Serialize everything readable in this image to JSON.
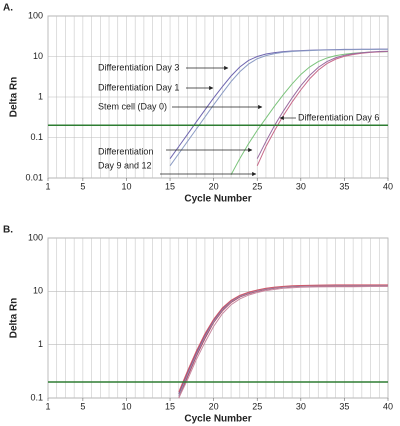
{
  "chart_data": [
    {
      "type": "line",
      "panel_label": "A.",
      "xlabel": "Cycle Number",
      "ylabel": "Delta Rn",
      "log_y": true,
      "xlim": [
        1,
        40
      ],
      "xticks": [
        1,
        5,
        10,
        15,
        20,
        25,
        30,
        35,
        40
      ],
      "xgrid": [
        1,
        2,
        3,
        4,
        5,
        6,
        7,
        8,
        9,
        10,
        11,
        12,
        13,
        14,
        15,
        16,
        17,
        18,
        19,
        20,
        21,
        22,
        23,
        24,
        25,
        26,
        27,
        28,
        29,
        30,
        31,
        32,
        33,
        34,
        35,
        36,
        37,
        38,
        39,
        40
      ],
      "ylim": [
        0.01,
        100
      ],
      "yticks": [
        0.01,
        0.1,
        1,
        10,
        100
      ],
      "threshold": 0.2,
      "threshold_color": "#2e7d32",
      "annotations": [
        "Differentiation Day 3",
        "Differentiation Day 1",
        "Stem cell (Day 0)",
        "Differentiation Day 6",
        "Differentiation",
        "Day 9 and 12"
      ],
      "series": [
        {
          "color": "#6f66b0",
          "x": [
            15,
            16,
            17,
            18,
            19,
            20,
            21,
            22,
            23,
            24,
            25,
            26,
            27,
            28,
            29,
            30,
            31,
            32,
            33,
            34,
            35,
            36,
            37,
            38,
            39,
            40
          ],
          "values": [
            0.03,
            0.06,
            0.12,
            0.24,
            0.48,
            0.95,
            1.8,
            3.3,
            5.5,
            8,
            10,
            11.5,
            12.5,
            13.2,
            13.7,
            14,
            14.3,
            14.5,
            14.7,
            14.8,
            15,
            15,
            15.1,
            15.1,
            15.2,
            15.2
          ]
        },
        {
          "color": "#8c9cc4",
          "x": [
            15,
            16,
            17,
            18,
            19,
            20,
            21,
            22,
            23,
            24,
            25,
            26,
            27,
            28,
            29,
            30,
            31,
            32,
            33,
            34,
            35,
            36,
            37,
            38,
            39,
            40
          ],
          "values": [
            0.02,
            0.04,
            0.08,
            0.16,
            0.32,
            0.64,
            1.25,
            2.4,
            4.2,
            6.5,
            8.8,
            10.5,
            11.8,
            12.7,
            13.3,
            13.7,
            14,
            14.3,
            14.5,
            14.6,
            14.7,
            14.8,
            14.9,
            14.9,
            15,
            15
          ]
        },
        {
          "color": "#7cc47c",
          "x": [
            22,
            23,
            24,
            25,
            26,
            27,
            28,
            29,
            30,
            31,
            32,
            33,
            34,
            35,
            36,
            37,
            38,
            39,
            40
          ],
          "values": [
            0.012,
            0.03,
            0.07,
            0.15,
            0.3,
            0.6,
            1.15,
            2.1,
            3.6,
            5.5,
            7.5,
            9.2,
            10.5,
            11.4,
            12,
            12.5,
            12.8,
            13,
            13.2
          ]
        },
        {
          "color": "#c86a8a",
          "x": [
            25,
            26,
            27,
            28,
            29,
            30,
            31,
            32,
            33,
            34,
            35,
            36,
            37,
            38,
            39,
            40
          ],
          "values": [
            0.02,
            0.06,
            0.15,
            0.35,
            0.75,
            1.5,
            2.8,
            4.6,
            6.7,
            8.6,
            10.1,
            11.2,
            12,
            12.6,
            13,
            13.3
          ]
        },
        {
          "color": "#9a6aa0",
          "x": [
            25,
            26,
            27,
            28,
            29,
            30,
            31,
            32,
            33,
            34,
            35,
            36,
            37,
            38,
            39,
            40
          ],
          "values": [
            0.03,
            0.08,
            0.2,
            0.45,
            0.95,
            1.9,
            3.4,
            5.4,
            7.5,
            9.3,
            10.7,
            11.7,
            12.4,
            12.9,
            13.3,
            13.5
          ]
        }
      ]
    },
    {
      "type": "line",
      "panel_label": "B.",
      "xlabel": "Cycle Number",
      "ylabel": "Delta Rn",
      "log_y": true,
      "xlim": [
        1,
        40
      ],
      "xticks": [
        1,
        5,
        10,
        15,
        20,
        25,
        30,
        35,
        40
      ],
      "xgrid": [
        1,
        2,
        3,
        4,
        5,
        6,
        7,
        8,
        9,
        10,
        11,
        12,
        13,
        14,
        15,
        16,
        17,
        18,
        19,
        20,
        21,
        22,
        23,
        24,
        25,
        26,
        27,
        28,
        29,
        30,
        31,
        32,
        33,
        34,
        35,
        36,
        37,
        38,
        39,
        40
      ],
      "ylim": [
        0.1,
        100
      ],
      "yticks": [
        0.1,
        1,
        10,
        100
      ],
      "threshold": 0.2,
      "threshold_color": "#2e7d32",
      "series": [
        {
          "color": "#b03a5a",
          "x": [
            16,
            17,
            18,
            19,
            20,
            21,
            22,
            23,
            24,
            25,
            26,
            27,
            28,
            29,
            30,
            32,
            34,
            36,
            38,
            40
          ],
          "values": [
            0.1,
            0.25,
            0.6,
            1.3,
            2.6,
            4.3,
            6.2,
            7.8,
            9,
            10,
            10.8,
            11.4,
            11.9,
            12.2,
            12.4,
            12.6,
            12.6,
            12.6,
            12.6,
            12.6
          ]
        },
        {
          "color": "#7a4a8a",
          "x": [
            16,
            17,
            18,
            19,
            20,
            21,
            22,
            23,
            24,
            25,
            26,
            27,
            28,
            29,
            30,
            32,
            34,
            36,
            38,
            40
          ],
          "values": [
            0.12,
            0.3,
            0.7,
            1.5,
            2.9,
            4.7,
            6.6,
            8.2,
            9.4,
            10.4,
            11.2,
            11.8,
            12.2,
            12.5,
            12.7,
            12.9,
            13,
            13,
            13,
            13
          ]
        },
        {
          "color": "#c88aa0",
          "x": [
            16,
            17,
            18,
            19,
            20,
            21,
            22,
            23,
            24,
            25,
            26,
            27,
            28,
            29,
            30,
            32,
            34,
            36,
            38,
            40
          ],
          "values": [
            0.1,
            0.22,
            0.52,
            1.1,
            2.2,
            3.8,
            5.6,
            7.2,
            8.5,
            9.5,
            10.3,
            10.9,
            11.4,
            11.7,
            11.9,
            12.1,
            12.2,
            12.2,
            12.3,
            12.3
          ]
        },
        {
          "color": "#9a8aa8",
          "x": [
            16,
            17,
            18,
            19,
            20,
            21,
            22,
            23,
            24,
            25,
            26,
            27,
            28,
            29,
            30,
            32,
            34,
            36,
            38,
            40
          ],
          "values": [
            0.11,
            0.27,
            0.64,
            1.4,
            2.7,
            4.5,
            6.4,
            8,
            9.2,
            10.2,
            11,
            11.6,
            12,
            12.3,
            12.5,
            12.7,
            12.8,
            12.8,
            12.8,
            12.9
          ]
        },
        {
          "color": "#d05a6a",
          "x": [
            16,
            17,
            18,
            19,
            20,
            21,
            22,
            23,
            24,
            25,
            26,
            27,
            28,
            29,
            30,
            32,
            34,
            36,
            38,
            40
          ],
          "values": [
            0.13,
            0.32,
            0.75,
            1.6,
            3,
            4.9,
            6.8,
            8.4,
            9.6,
            10.6,
            11.4,
            12,
            12.4,
            12.7,
            12.9,
            13.1,
            13.2,
            13.2,
            13.2,
            13.2
          ]
        }
      ]
    }
  ]
}
